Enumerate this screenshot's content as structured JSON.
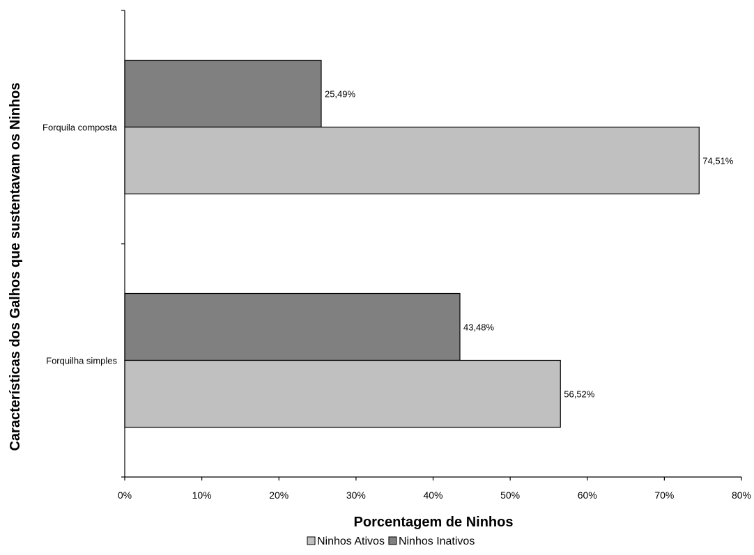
{
  "chart_data": {
    "type": "bar",
    "orientation": "horizontal",
    "categories": [
      "Forquilha simples",
      "Forquila composta"
    ],
    "series": [
      {
        "name": "Ninhos Ativos",
        "values": [
          56.52,
          74.51
        ],
        "labels": [
          "56,52%",
          "74,51%"
        ],
        "color": "#c0c0c0"
      },
      {
        "name": "Ninhos Inativos",
        "values": [
          43.48,
          25.49
        ],
        "labels": [
          "43,48%",
          "25,49%"
        ],
        "color": "#808080"
      }
    ],
    "xlabel": "Porcentagem de Ninhos",
    "ylabel": "Características dos Galhos que sustentavam os Ninhos",
    "xlim": [
      0,
      80
    ],
    "xticks": [
      0,
      10,
      20,
      30,
      40,
      50,
      60,
      70,
      80
    ],
    "xtick_labels": [
      "0%",
      "10%",
      "20%",
      "30%",
      "40%",
      "50%",
      "60%",
      "70%",
      "80%"
    ],
    "grid": false,
    "legend_position": "bottom"
  }
}
